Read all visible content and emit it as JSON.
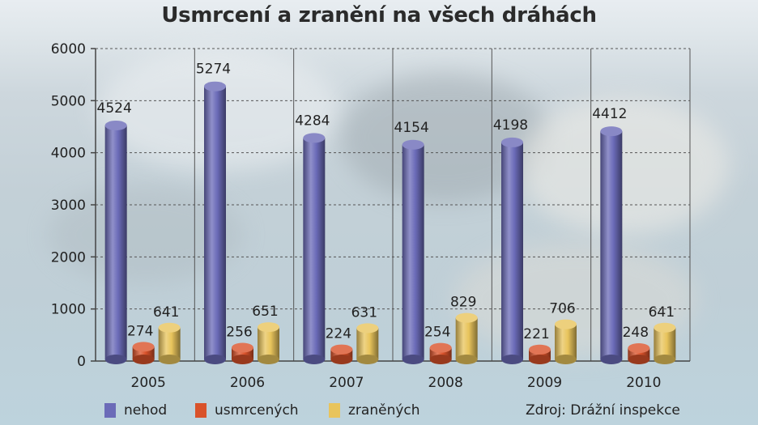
{
  "title": "Usmrcení a zranění na všech dráhách",
  "source": "Zdroj: Drážní inspekce",
  "colors": {
    "nehod": "#6b6bb8",
    "usmrcenych": "#d9522a",
    "zranenych": "#e8c45c"
  },
  "chart_data": {
    "type": "bar",
    "title": "Usmrcení a zranění na všech dráhách",
    "categories": [
      "2005",
      "2006",
      "2007",
      "2008",
      "2009",
      "2010"
    ],
    "series": [
      {
        "name": "nehod",
        "values": [
          4524,
          5274,
          4284,
          4154,
          4198,
          4412
        ]
      },
      {
        "name": "usmrcených",
        "values": [
          274,
          256,
          224,
          254,
          221,
          248
        ]
      },
      {
        "name": "zraněných",
        "values": [
          641,
          651,
          631,
          829,
          706,
          641
        ]
      }
    ],
    "y_ticks": [
      "0",
      "1000",
      "2000",
      "3000",
      "4000",
      "5000",
      "6000"
    ],
    "ylim": [
      0,
      6000
    ],
    "grid": true,
    "legend": "bottom-left"
  }
}
